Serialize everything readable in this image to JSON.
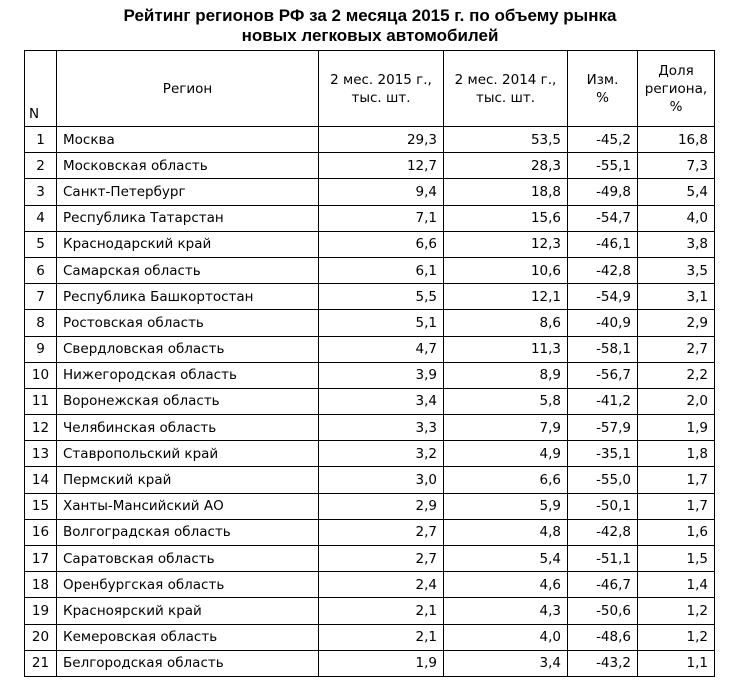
{
  "title_line1": "Рейтинг регионов РФ за 2 месяца 2015 г. по объему рынка",
  "title_line2": "новых легковых автомобилей",
  "headers": {
    "n": "N",
    "region": "Регион",
    "y2015_l1": "2 мес. 2015 г.,",
    "y2015_l2": "тыс. шт.",
    "y2014_l1": "2 мес. 2014 г.,",
    "y2014_l2": "тыс. шт.",
    "change_l1": "Изм.",
    "change_l2": "%",
    "share_l1": "Доля",
    "share_l2": "региона,",
    "share_l3": "%"
  },
  "rows": [
    {
      "n": "1",
      "region": "Москва",
      "y2015": "29,3",
      "y2014": "53,5",
      "change": "-45,2",
      "share": "16,8"
    },
    {
      "n": "2",
      "region": "Московская область",
      "y2015": "12,7",
      "y2014": "28,3",
      "change": "-55,1",
      "share": "7,3"
    },
    {
      "n": "3",
      "region": "Санкт-Петербург",
      "y2015": "9,4",
      "y2014": "18,8",
      "change": "-49,8",
      "share": "5,4"
    },
    {
      "n": "4",
      "region": "Республика Татарстан",
      "y2015": "7,1",
      "y2014": "15,6",
      "change": "-54,7",
      "share": "4,0"
    },
    {
      "n": "5",
      "region": "Краснодарский край",
      "y2015": "6,6",
      "y2014": "12,3",
      "change": "-46,1",
      "share": "3,8"
    },
    {
      "n": "6",
      "region": "Самарская область",
      "y2015": "6,1",
      "y2014": "10,6",
      "change": "-42,8",
      "share": "3,5"
    },
    {
      "n": "7",
      "region": "Республика Башкортостан",
      "y2015": "5,5",
      "y2014": "12,1",
      "change": "-54,9",
      "share": "3,1"
    },
    {
      "n": "8",
      "region": "Ростовская область",
      "y2015": "5,1",
      "y2014": "8,6",
      "change": "-40,9",
      "share": "2,9"
    },
    {
      "n": "9",
      "region": "Свердловская область",
      "y2015": "4,7",
      "y2014": "11,3",
      "change": "-58,1",
      "share": "2,7"
    },
    {
      "n": "10",
      "region": "Нижегородская область",
      "y2015": "3,9",
      "y2014": "8,9",
      "change": "-56,7",
      "share": "2,2"
    },
    {
      "n": "11",
      "region": "Воронежская область",
      "y2015": "3,4",
      "y2014": "5,8",
      "change": "-41,2",
      "share": "2,0"
    },
    {
      "n": "12",
      "region": "Челябинская область",
      "y2015": "3,3",
      "y2014": "7,9",
      "change": "-57,9",
      "share": "1,9"
    },
    {
      "n": "13",
      "region": "Ставропольский край",
      "y2015": "3,2",
      "y2014": "4,9",
      "change": "-35,1",
      "share": "1,8"
    },
    {
      "n": "14",
      "region": "Пермский край",
      "y2015": "3,0",
      "y2014": "6,6",
      "change": "-55,0",
      "share": "1,7"
    },
    {
      "n": "15",
      "region": "Ханты-Мансийский АО",
      "y2015": "2,9",
      "y2014": "5,9",
      "change": "-50,1",
      "share": "1,7"
    },
    {
      "n": "16",
      "region": "Волгоградская область",
      "y2015": "2,7",
      "y2014": "4,8",
      "change": "-42,8",
      "share": "1,6"
    },
    {
      "n": "17",
      "region": "Саратовская область",
      "y2015": "2,7",
      "y2014": "5,4",
      "change": "-51,1",
      "share": "1,5"
    },
    {
      "n": "18",
      "region": "Оренбургская область",
      "y2015": "2,4",
      "y2014": "4,6",
      "change": "-46,7",
      "share": "1,4"
    },
    {
      "n": "19",
      "region": "Красноярский край",
      "y2015": "2,1",
      "y2014": "4,3",
      "change": "-50,6",
      "share": "1,2"
    },
    {
      "n": "20",
      "region": "Кемеровская область",
      "y2015": "2,1",
      "y2014": "4,0",
      "change": "-48,6",
      "share": "1,2"
    },
    {
      "n": "21",
      "region": "Белгородская область",
      "y2015": "1,9",
      "y2014": "3,4",
      "change": "-43,2",
      "share": "1,1"
    }
  ]
}
